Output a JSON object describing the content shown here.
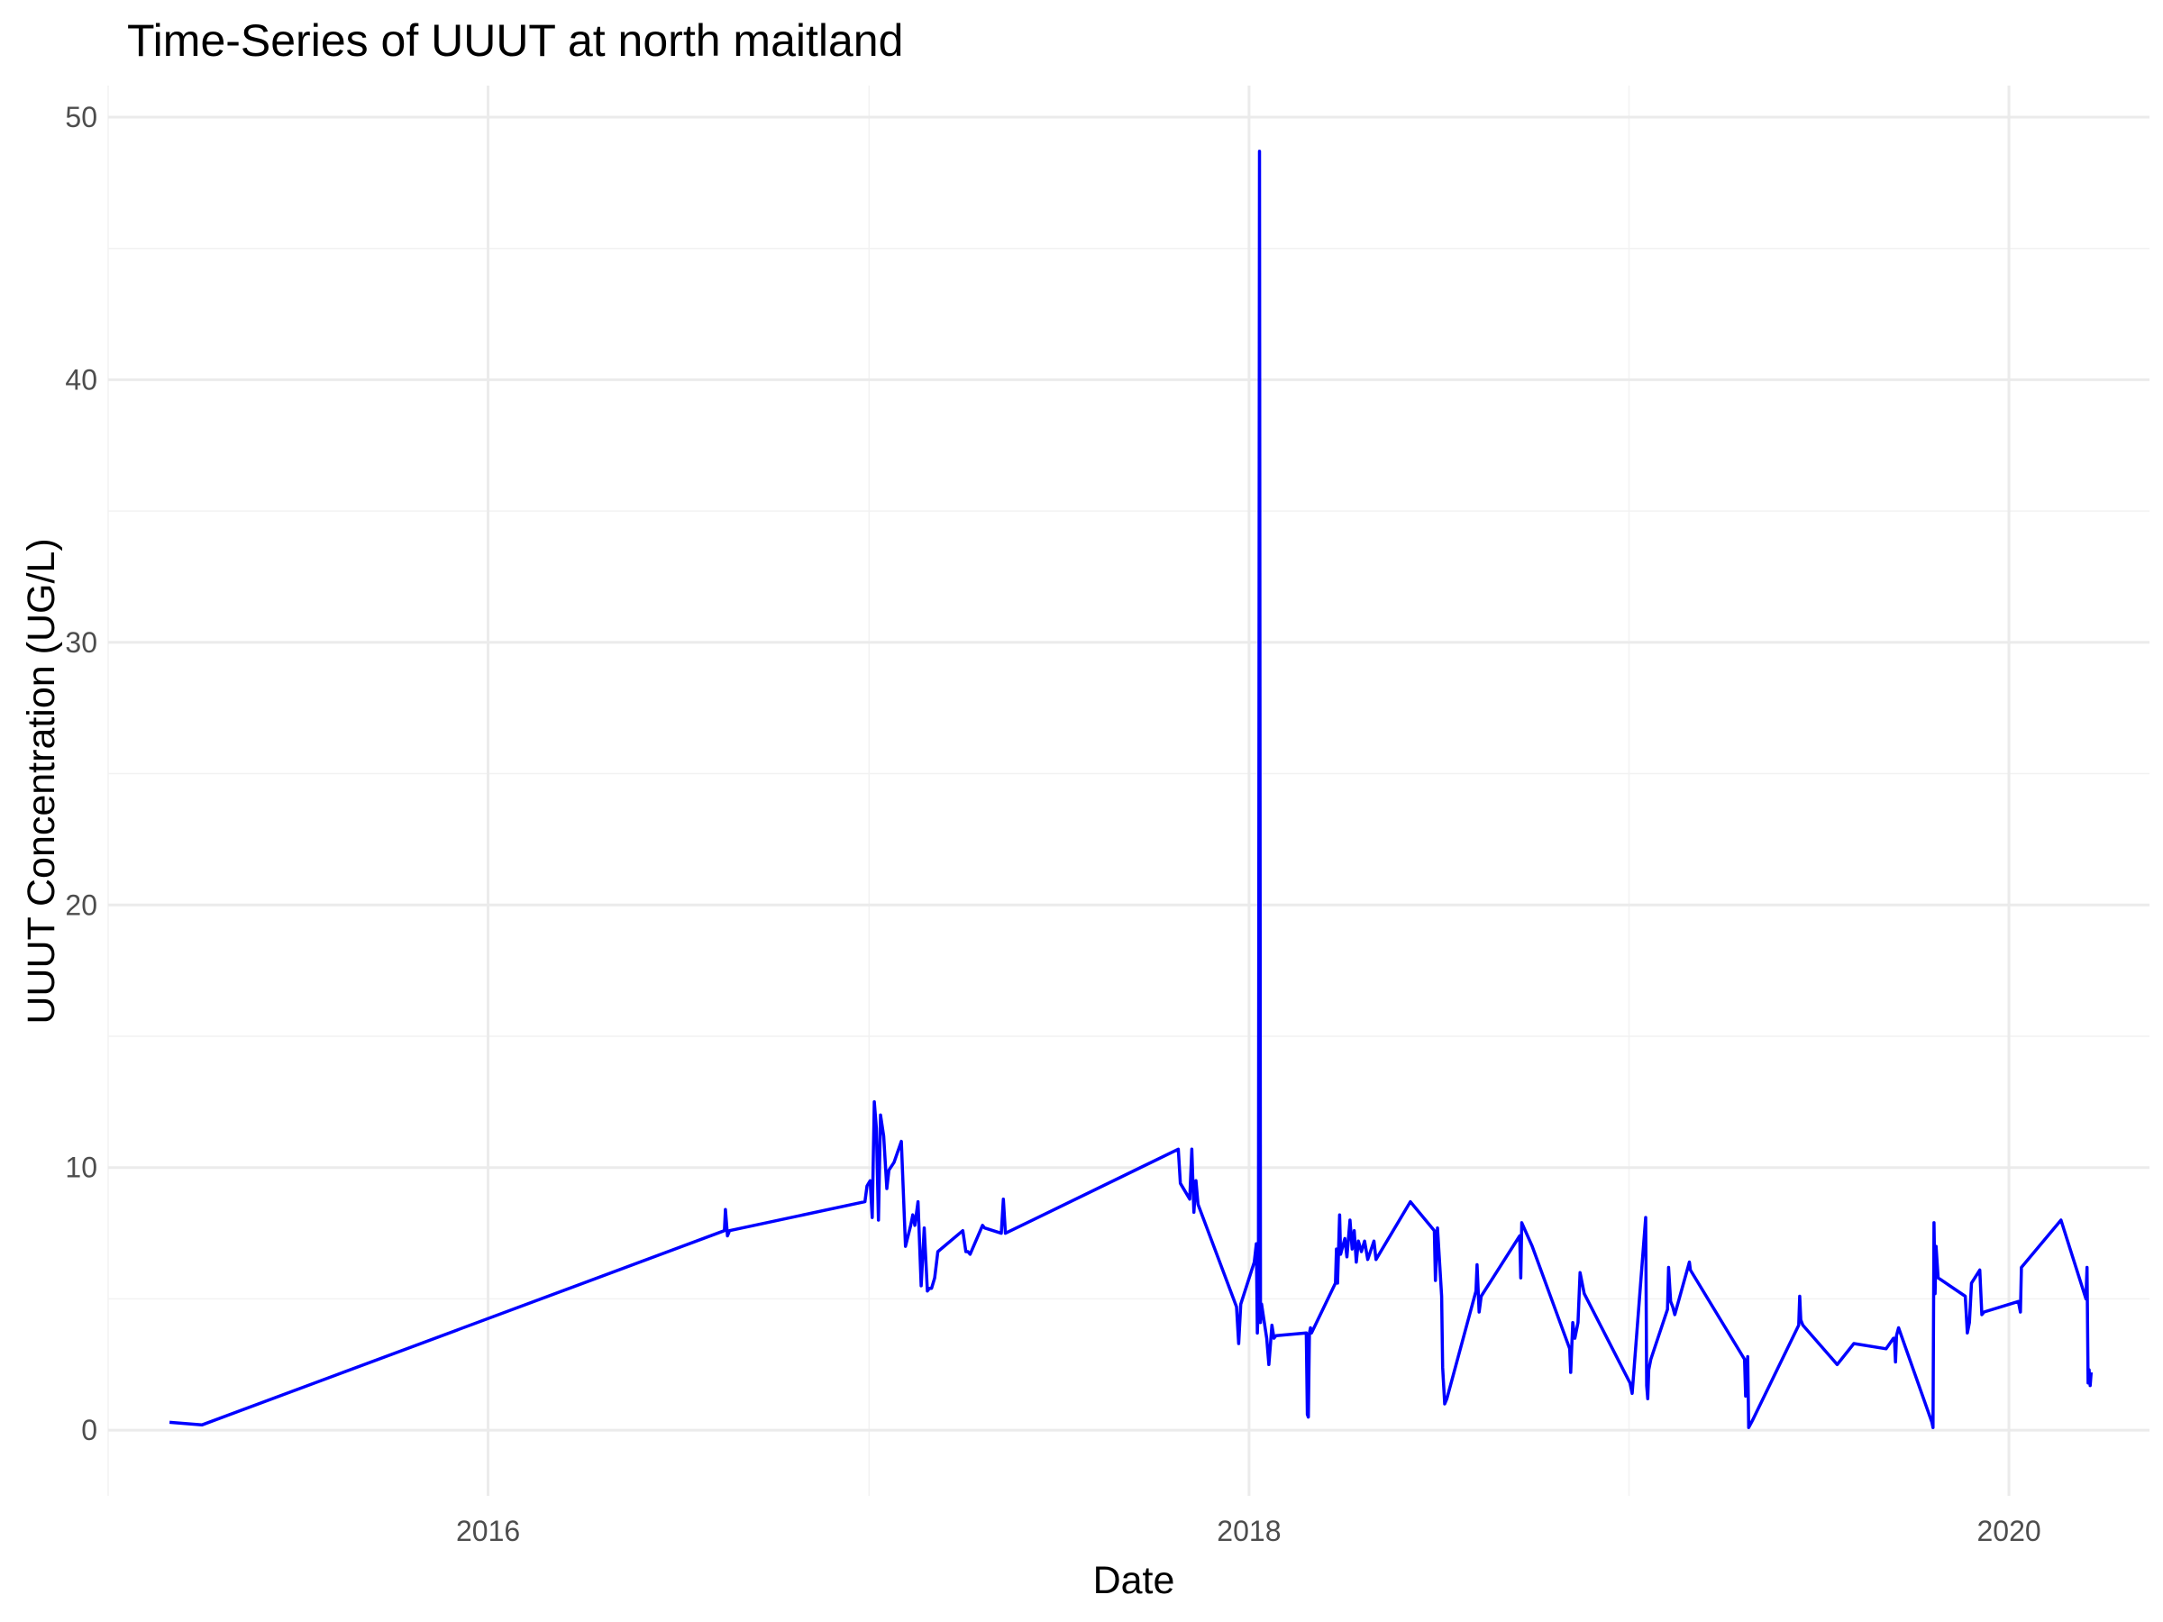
{
  "chart_data": {
    "type": "line",
    "title": "Time-Series of UUUT at north maitland",
    "xlabel": "Date",
    "ylabel": "UUUT Concentration (UG/L)",
    "x_ticks": [
      "2016",
      "2018",
      "2020"
    ],
    "y_ticks": [
      "0",
      "10",
      "20",
      "30",
      "40",
      "50"
    ],
    "xlim": [
      "2015-01-01",
      "2020-05-15"
    ],
    "ylim": [
      -2.5,
      51.2
    ],
    "grid": true,
    "colors": {
      "series": "#0000ff",
      "grid": "#ebebeb"
    },
    "series": [
      {
        "x": [
          "2015-03-01",
          "2015-04-01",
          "2016-08-15",
          "2016-08-16",
          "2016-08-18",
          "2016-08-20",
          "2016-12-28",
          "2016-12-30",
          "2017-01-02",
          "2017-01-04",
          "2017-01-06",
          "2017-01-08",
          "2017-01-10",
          "2017-01-12",
          "2017-01-15",
          "2017-01-18",
          "2017-01-20",
          "2017-01-25",
          "2017-02-01",
          "2017-02-05",
          "2017-02-10",
          "2017-02-12",
          "2017-02-14",
          "2017-02-17",
          "2017-02-20",
          "2017-02-23",
          "2017-02-26",
          "2017-02-28",
          "2017-03-02",
          "2017-03-05",
          "2017-03-08",
          "2017-04-01",
          "2017-04-04",
          "2017-04-06",
          "2017-04-08",
          "2017-04-20",
          "2017-04-22",
          "2017-05-08",
          "2017-05-10",
          "2017-05-12",
          "2017-10-25",
          "2017-10-27",
          "2017-11-05",
          "2017-11-07",
          "2017-11-09",
          "2017-11-11",
          "2017-11-13",
          "2017-12-20",
          "2017-12-22",
          "2017-12-24",
          "2018-01-06",
          "2018-01-08",
          "2018-01-09",
          "2018-01-10",
          "2018-01-11",
          "2018-01-12",
          "2018-01-13",
          "2018-01-18",
          "2018-01-20",
          "2018-01-23",
          "2018-01-25",
          "2018-01-27",
          "2018-02-25",
          "2018-02-26",
          "2018-02-27",
          "2018-02-28",
          "2018-03-01",
          "2018-03-02",
          "2018-03-25",
          "2018-03-26",
          "2018-03-27",
          "2018-03-29",
          "2018-03-30",
          "2018-04-03",
          "2018-04-05",
          "2018-04-08",
          "2018-04-10",
          "2018-04-12",
          "2018-04-14",
          "2018-04-16",
          "2018-04-19",
          "2018-04-22",
          "2018-04-25",
          "2018-05-01",
          "2018-05-03",
          "2018-06-05",
          "2018-06-28",
          "2018-06-29",
          "2018-07-01",
          "2018-07-05",
          "2018-07-06",
          "2018-07-08",
          "2018-07-10",
          "2018-08-07",
          "2018-08-08",
          "2018-08-10",
          "2018-08-12",
          "2018-09-18",
          "2018-09-19",
          "2018-09-20",
          "2018-09-30",
          "2018-11-05",
          "2018-11-06",
          "2018-11-08",
          "2018-11-10",
          "2018-11-13",
          "2018-11-15",
          "2018-11-17",
          "2018-11-19",
          "2019-01-02",
          "2019-01-04",
          "2019-01-17",
          "2019-01-18",
          "2019-01-19",
          "2019-01-20",
          "2019-01-22",
          "2019-02-07",
          "2019-02-08",
          "2019-02-10",
          "2019-02-12",
          "2019-02-14",
          "2019-02-28",
          "2019-03-01",
          "2019-04-22",
          "2019-04-23",
          "2019-04-24",
          "2019-04-25",
          "2019-04-26",
          "2019-04-30",
          "2019-06-13",
          "2019-06-14",
          "2019-06-15",
          "2019-06-17",
          "2019-07-20",
          "2019-08-05",
          "2019-09-05",
          "2019-09-12",
          "2019-09-13",
          "2019-09-14",
          "2019-09-15",
          "2019-09-17",
          "2019-10-19",
          "2019-10-20",
          "2019-10-21",
          "2019-10-22",
          "2019-10-23",
          "2019-10-25",
          "2019-11-20",
          "2019-11-22",
          "2019-11-24",
          "2019-11-26",
          "2019-12-04",
          "2019-12-06",
          "2019-12-08",
          "2020-01-10",
          "2020-01-12",
          "2020-01-13",
          "2020-02-20",
          "2020-03-15",
          "2020-03-16",
          "2020-03-17",
          "2020-03-18",
          "2020-03-19",
          "2020-03-20"
        ],
        "values": [
          0.3,
          0.2,
          7.6,
          8.4,
          7.4,
          7.6,
          8.7,
          9.3,
          9.5,
          8.1,
          12.5,
          11.5,
          8.0,
          12.0,
          11.2,
          9.2,
          9.9,
          10.2,
          11.0,
          7.0,
          7.8,
          8.2,
          7.8,
          8.7,
          5.5,
          7.7,
          5.3,
          5.4,
          5.4,
          5.8,
          6.8,
          7.6,
          6.8,
          6.8,
          6.7,
          7.8,
          7.7,
          7.5,
          8.8,
          7.5,
          10.7,
          9.4,
          8.8,
          10.7,
          8.3,
          9.5,
          8.6,
          4.7,
          3.3,
          4.8,
          6.4,
          7.1,
          3.7,
          4.9,
          48.7,
          4.1,
          4.8,
          3.5,
          2.5,
          4.0,
          3.5,
          3.6,
          3.7,
          0.6,
          0.5,
          3.7,
          3.9,
          3.7,
          5.6,
          6.9,
          5.6,
          8.2,
          6.7,
          7.3,
          6.6,
          8.0,
          6.9,
          7.6,
          6.4,
          7.2,
          6.8,
          7.2,
          6.5,
          7.2,
          6.5,
          8.7,
          7.6,
          5.7,
          7.7,
          5.1,
          2.4,
          1.0,
          1.2,
          5.3,
          6.3,
          4.5,
          5.1,
          7.4,
          5.8,
          7.9,
          7.0,
          3.1,
          2.2,
          4.1,
          3.5,
          4.1,
          6.0,
          5.6,
          5.2,
          1.8,
          1.4,
          8.1,
          1.7,
          1.2,
          2.3,
          2.7,
          4.6,
          6.2,
          4.9,
          4.7,
          4.4,
          6.4,
          6.1,
          2.7,
          1.3,
          1.9,
          2.8,
          0.1,
          0.4,
          4.0,
          5.1,
          4.2,
          4.0,
          2.5,
          3.3,
          3.1,
          3.5,
          3.5,
          2.6,
          3.6,
          3.9,
          0.3,
          0.1,
          7.9,
          5.2,
          7.0,
          5.8,
          5.1,
          3.7,
          4.1,
          5.6,
          6.1,
          4.4,
          4.5,
          4.9,
          4.5,
          6.2,
          8.0,
          5.0,
          6.2,
          1.8,
          2.3,
          1.7,
          2.2
        ]
      }
    ]
  }
}
